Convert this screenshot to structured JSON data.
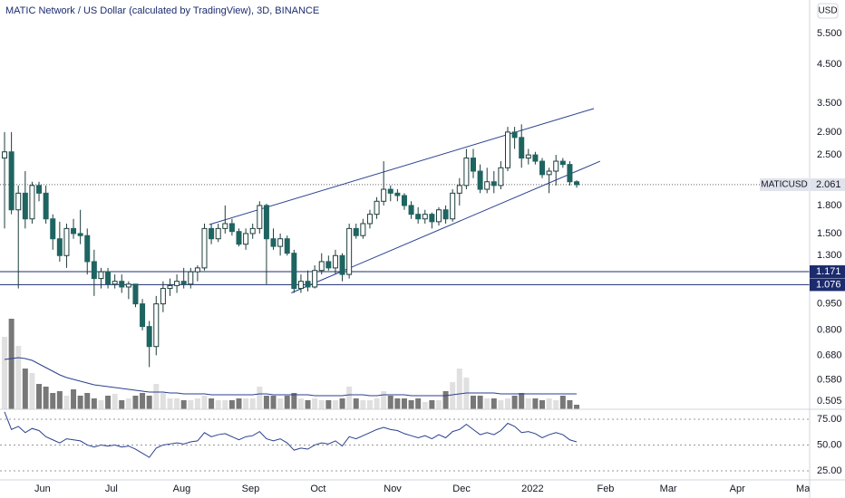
{
  "chart_data": {
    "type": "candlestick",
    "title": "MATIC Network / US Dollar (calculated by TradingView), 3D, BINANCE",
    "currency": "USD",
    "log": true,
    "ylim": [
      0.479,
      6.84
    ],
    "yticks": [
      {
        "value": 5.5,
        "label": "5.500"
      },
      {
        "value": 4.5,
        "label": "4.500"
      },
      {
        "value": 3.5,
        "label": "3.500"
      },
      {
        "value": 2.9,
        "label": "2.900"
      },
      {
        "value": 2.5,
        "label": "2.500"
      },
      {
        "value": 1.8,
        "label": "1.800"
      },
      {
        "value": 1.5,
        "label": "1.500"
      },
      {
        "value": 1.3,
        "label": "1.300"
      },
      {
        "value": 0.95,
        "label": "0.950"
      },
      {
        "value": 0.8,
        "label": "0.800"
      },
      {
        "value": 0.68,
        "label": "0.680"
      },
      {
        "value": 0.58,
        "label": "0.580"
      },
      {
        "value": 0.505,
        "label": "0.505"
      }
    ],
    "xlim": [
      -0.66,
      116.8
    ],
    "xticks": [
      {
        "value": 5.5,
        "label": "Jun"
      },
      {
        "value": 15.5,
        "label": "Jul"
      },
      {
        "value": 25.7,
        "label": "Aug"
      },
      {
        "value": 35.7,
        "label": "Sep"
      },
      {
        "value": 45.5,
        "label": "Oct"
      },
      {
        "value": 56.3,
        "label": "Nov"
      },
      {
        "value": 66.3,
        "label": "Dec"
      },
      {
        "value": 76.6,
        "label": "2022"
      },
      {
        "value": 87.2,
        "label": "Feb"
      },
      {
        "value": 96.3,
        "label": "Mar"
      },
      {
        "value": 106.3,
        "label": "Apr"
      },
      {
        "value": 116.2,
        "label": "May"
      }
    ],
    "up_color": "#ffffff",
    "down_color": "#1e6461",
    "outline_color": "#1e3d3b",
    "open": [
      2.45,
      2.55,
      1.75,
      1.95,
      1.65,
      2.05,
      1.95,
      1.65,
      1.45,
      1.3,
      1.55,
      1.5,
      1.48,
      1.25,
      1.12,
      1.17,
      1.08,
      1.1,
      1.06,
      1.08,
      0.95,
      0.82,
      0.72,
      0.95,
      1.05,
      1.07,
      1.1,
      1.08,
      1.17,
      1.2,
      1.55,
      1.45,
      1.55,
      1.6,
      1.52,
      1.4,
      1.5,
      1.55,
      1.8,
      1.45,
      1.38,
      1.45,
      1.32,
      1.05,
      1.1,
      1.06,
      1.18,
      1.25,
      1.2,
      1.3,
      1.15,
      1.55,
      1.48,
      1.6,
      1.7,
      1.85,
      2.0,
      1.95,
      1.92,
      1.8,
      1.7,
      1.65,
      1.7,
      1.62,
      1.75,
      1.65,
      1.95,
      2.05,
      2.45,
      2.25,
      2.0,
      2.1,
      2.05,
      2.3,
      2.9,
      2.8,
      2.45,
      2.5,
      2.4,
      2.2,
      2.25,
      2.4,
      2.35,
      2.1
    ],
    "high": [
      2.9,
      2.9,
      2.05,
      2.25,
      2.1,
      2.1,
      2.05,
      1.7,
      1.62,
      1.6,
      1.65,
      1.75,
      1.55,
      1.35,
      1.2,
      1.2,
      1.15,
      1.15,
      1.1,
      1.08,
      0.98,
      0.85,
      1.0,
      1.1,
      1.12,
      1.15,
      1.2,
      1.2,
      1.22,
      1.6,
      1.6,
      1.6,
      1.8,
      1.65,
      1.55,
      1.55,
      1.6,
      1.85,
      1.82,
      1.55,
      1.5,
      1.48,
      1.35,
      1.15,
      1.18,
      1.22,
      1.32,
      1.3,
      1.35,
      1.32,
      1.6,
      1.6,
      1.65,
      1.75,
      1.9,
      2.4,
      2.05,
      2.0,
      1.95,
      1.85,
      1.78,
      1.75,
      1.72,
      1.78,
      1.8,
      2.0,
      2.15,
      2.6,
      2.6,
      2.35,
      2.3,
      2.25,
      2.4,
      3.0,
      3.0,
      3.05,
      2.6,
      2.55,
      2.45,
      2.3,
      2.5,
      2.45,
      2.4,
      2.12
    ],
    "low": [
      1.55,
      1.7,
      1.05,
      1.55,
      1.6,
      1.85,
      1.6,
      1.35,
      1.25,
      1.2,
      1.45,
      1.4,
      1.15,
      1.0,
      1.05,
      1.05,
      1.05,
      1.02,
      0.98,
      0.93,
      0.8,
      0.63,
      0.68,
      0.9,
      1.0,
      1.02,
      1.05,
      1.05,
      1.1,
      1.18,
      1.4,
      1.42,
      1.5,
      1.48,
      1.38,
      1.35,
      1.45,
      1.5,
      1.08,
      1.35,
      1.3,
      1.3,
      1.02,
      1.02,
      1.03,
      1.05,
      1.15,
      1.18,
      1.15,
      1.1,
      1.12,
      1.45,
      1.45,
      1.55,
      1.65,
      1.8,
      1.85,
      1.85,
      1.75,
      1.65,
      1.6,
      1.6,
      1.55,
      1.58,
      1.6,
      1.62,
      1.8,
      2.0,
      2.15,
      1.95,
      1.95,
      1.95,
      2.0,
      2.25,
      2.6,
      2.3,
      2.35,
      2.35,
      2.15,
      1.95,
      2.05,
      2.3,
      2.05,
      2.02
    ],
    "close": [
      2.55,
      1.75,
      1.95,
      1.65,
      2.05,
      1.95,
      1.65,
      1.45,
      1.3,
      1.55,
      1.5,
      1.48,
      1.25,
      1.12,
      1.17,
      1.08,
      1.1,
      1.06,
      1.08,
      0.95,
      0.82,
      0.72,
      0.95,
      1.05,
      1.07,
      1.1,
      1.08,
      1.17,
      1.2,
      1.55,
      1.45,
      1.55,
      1.6,
      1.52,
      1.4,
      1.5,
      1.55,
      1.8,
      1.45,
      1.38,
      1.45,
      1.32,
      1.05,
      1.1,
      1.06,
      1.18,
      1.25,
      1.2,
      1.3,
      1.15,
      1.55,
      1.48,
      1.6,
      1.7,
      1.85,
      2.0,
      1.95,
      1.92,
      1.8,
      1.7,
      1.65,
      1.7,
      1.62,
      1.75,
      1.65,
      1.95,
      2.05,
      2.45,
      2.25,
      2.0,
      2.1,
      2.05,
      2.3,
      2.9,
      2.8,
      2.45,
      2.5,
      2.4,
      2.2,
      2.25,
      2.4,
      2.35,
      2.1,
      2.061
    ],
    "volume_ylim": [
      0,
      100
    ],
    "volume_up_color": "#e0e0e0",
    "volume_down_color": "#787878",
    "volume_ma_color": "#2a3f8f",
    "volume": [
      80,
      100,
      70,
      45,
      40,
      28,
      25,
      18,
      20,
      15,
      22,
      15,
      18,
      12,
      10,
      15,
      17,
      10,
      12,
      15,
      18,
      15,
      28,
      18,
      12,
      12,
      10,
      10,
      12,
      15,
      12,
      10,
      10,
      10,
      12,
      12,
      12,
      25,
      15,
      15,
      12,
      15,
      18,
      12,
      10,
      12,
      10,
      10,
      10,
      12,
      25,
      12,
      10,
      10,
      12,
      20,
      15,
      12,
      12,
      10,
      12,
      8,
      10,
      10,
      20,
      30,
      45,
      35,
      15,
      15,
      12,
      12,
      10,
      12,
      15,
      18,
      12,
      12,
      10,
      12,
      10,
      15,
      10,
      5
    ],
    "volume_ma": [
      55,
      56,
      57,
      56,
      54,
      50,
      46,
      42,
      38,
      35,
      33,
      31,
      29,
      27,
      26,
      25,
      24,
      23,
      22,
      21,
      20,
      19,
      19,
      19,
      18,
      18,
      17,
      17,
      17,
      17,
      16,
      16,
      16,
      16,
      16,
      16,
      16,
      17,
      17,
      16,
      16,
      16,
      16,
      16,
      16,
      15,
      15,
      15,
      15,
      15,
      16,
      16,
      16,
      15,
      15,
      16,
      16,
      16,
      16,
      15,
      15,
      15,
      15,
      15,
      15,
      16,
      17,
      18,
      18,
      18,
      18,
      18,
      17,
      17,
      17,
      17,
      17,
      17,
      17,
      17,
      17,
      17,
      17,
      17
    ],
    "rsi_ylim": [
      16.2,
      84.6
    ],
    "rsi_yticks": [
      {
        "value": 75,
        "label": "75.00"
      },
      {
        "value": 50,
        "label": "50.00"
      },
      {
        "value": 25,
        "label": "25.00"
      }
    ],
    "rsi_color": "#2a3f8f",
    "rsi": [
      82,
      65,
      68,
      62,
      66,
      64,
      58,
      55,
      52,
      56,
      55,
      54,
      50,
      48,
      50,
      49,
      50,
      48,
      49,
      46,
      42,
      38,
      47,
      50,
      51,
      52,
      51,
      53,
      54,
      62,
      58,
      60,
      61,
      58,
      55,
      58,
      59,
      63,
      56,
      54,
      56,
      52,
      45,
      47,
      46,
      50,
      52,
      51,
      54,
      49,
      58,
      56,
      59,
      62,
      65,
      67,
      65,
      64,
      61,
      59,
      57,
      59,
      56,
      60,
      57,
      63,
      65,
      70,
      65,
      60,
      62,
      60,
      64,
      71,
      68,
      62,
      63,
      61,
      57,
      60,
      62,
      60,
      55,
      53
    ],
    "levels": [
      {
        "value": 1.171,
        "label": "1.171"
      },
      {
        "value": 1.076,
        "label": "1.076"
      }
    ],
    "level_color": "#1c2b6e",
    "price_tag": {
      "name": "MATICUSD",
      "value": 2.061,
      "label": "2.061"
    },
    "trendlines": [
      {
        "points": [
          [
            29.7,
            1.59
          ],
          [
            85.5,
            3.38
          ]
        ]
      },
      {
        "points": [
          [
            41.6,
            1.02
          ],
          [
            86.4,
            2.4
          ]
        ]
      }
    ],
    "trendline_color": "#2a3f8f"
  }
}
